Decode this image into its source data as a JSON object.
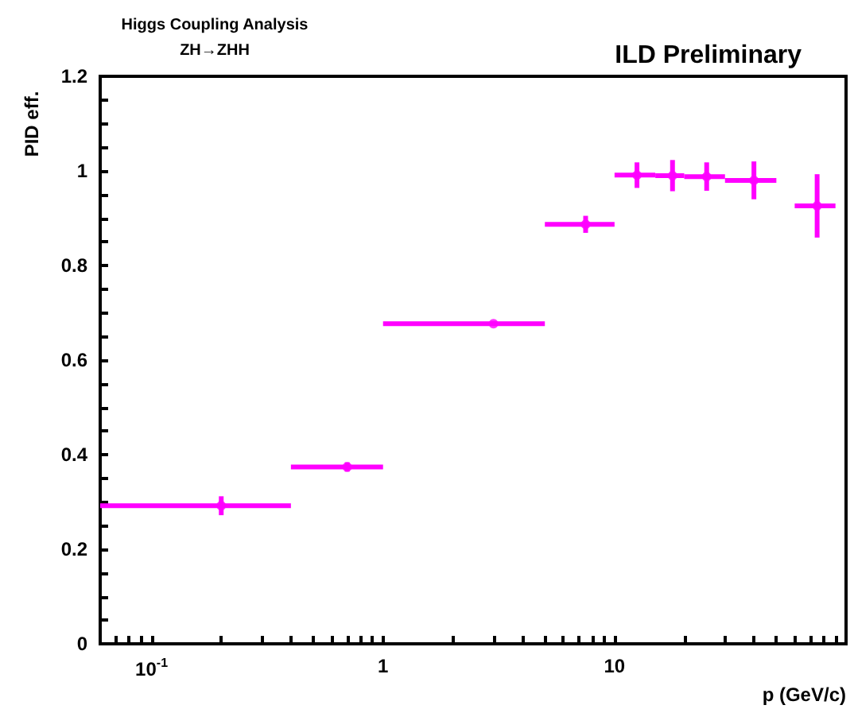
{
  "chart_data": {
    "type": "scatter",
    "title": "Higgs Coupling Analysis",
    "subtitle": "ZH→ZHH",
    "annotations": [
      "ILD Preliminary"
    ],
    "xlabel": "p (GeV/c)",
    "ylabel": "PID eff.",
    "x": [
      0.2,
      0.7,
      3,
      7.5,
      12.5,
      17.8,
      25,
      40,
      75
    ],
    "series": [
      {
        "color": "#ff00ff",
        "values": [
          0.292,
          0.374,
          0.677,
          0.887,
          0.991,
          0.99,
          0.988,
          0.98,
          0.926
        ],
        "errors": [
          0.02,
          0.01,
          0.005,
          0.018,
          0.027,
          0.033,
          0.03,
          0.04,
          0.067
        ],
        "xerrors": [
          [
            0.06,
            0.4
          ],
          [
            0.4,
            1
          ],
          [
            1,
            5
          ],
          [
            5,
            10
          ],
          [
            10,
            15
          ],
          [
            15,
            20
          ],
          [
            20,
            30
          ],
          [
            30,
            50
          ],
          [
            60,
            90
          ]
        ]
      }
    ],
    "log": "x",
    "marker": "circle",
    "xlim": [
      0.06,
      100
    ],
    "xticks": [
      {
        "value": 0.07,
        "label": null
      },
      {
        "value": 0.08,
        "label": null
      },
      {
        "value": 0.09,
        "label": null
      },
      {
        "value": 0.1,
        "label": "10$^{-1}$"
      },
      {
        "value": 0.2,
        "label": null
      },
      {
        "value": 0.3,
        "label": null
      },
      {
        "value": 0.4,
        "label": null
      },
      {
        "value": 0.5,
        "label": null
      },
      {
        "value": 0.6,
        "label": null
      },
      {
        "value": 0.7,
        "label": null
      },
      {
        "value": 0.8,
        "label": null
      },
      {
        "value": 0.9,
        "label": null
      },
      {
        "value": 1,
        "label": "1"
      },
      {
        "value": 2,
        "label": null
      },
      {
        "value": 3,
        "label": null
      },
      {
        "value": 4,
        "label": null
      },
      {
        "value": 5,
        "label": null
      },
      {
        "value": 6,
        "label": null
      },
      {
        "value": 7,
        "label": null
      },
      {
        "value": 8,
        "label": null
      },
      {
        "value": 9,
        "label": null
      },
      {
        "value": 10,
        "label": "10"
      },
      {
        "value": 20,
        "label": null
      },
      {
        "value": 30,
        "label": null
      },
      {
        "value": 40,
        "label": null
      },
      {
        "value": 50,
        "label": null
      },
      {
        "value": 60,
        "label": null
      },
      {
        "value": 70,
        "label": null
      },
      {
        "value": 80,
        "label": null
      },
      {
        "value": 90,
        "label": null
      }
    ],
    "ylim": [
      0,
      1.2
    ],
    "yticks": [
      0,
      {
        "value": 0.05,
        "label": null
      },
      {
        "value": 0.1,
        "label": null
      },
      {
        "value": 0.15,
        "label": null
      },
      0.2,
      {
        "value": 0.25,
        "label": null
      },
      {
        "value": 0.3,
        "label": null
      },
      {
        "value": 0.35,
        "label": null
      },
      0.4,
      {
        "value": 0.45,
        "label": null
      },
      {
        "value": 0.5,
        "label": null
      },
      {
        "value": 0.55,
        "label": null
      },
      0.6,
      {
        "value": 0.65,
        "label": null
      },
      {
        "value": 0.7,
        "label": null
      },
      {
        "value": 0.75,
        "label": null
      },
      0.8,
      {
        "value": 0.85,
        "label": null
      },
      {
        "value": 0.9,
        "label": null
      },
      {
        "value": 0.95,
        "label": null
      },
      1,
      {
        "value": 1.05,
        "label": null
      },
      {
        "value": 1.1,
        "label": null
      },
      {
        "value": 1.15,
        "label": null
      },
      1.2
    ]
  }
}
